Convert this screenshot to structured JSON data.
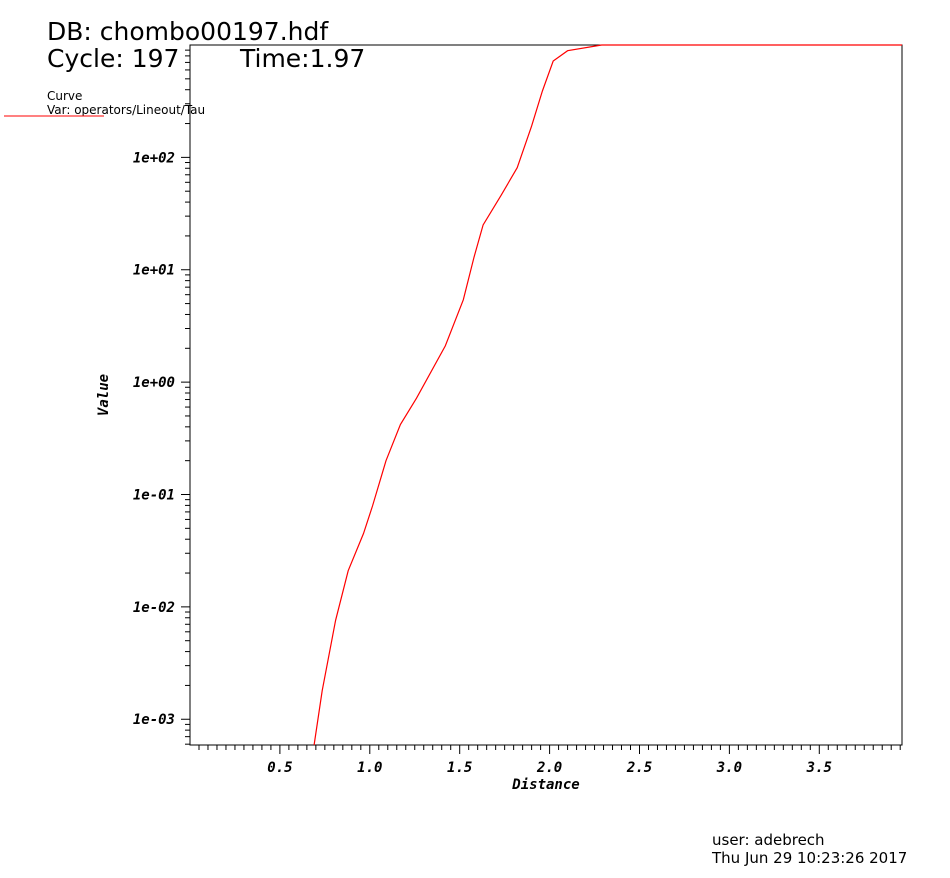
{
  "header": {
    "db": "DB: chombo00197.hdf",
    "cycle": "Cycle: 197",
    "time": "Time:1.97"
  },
  "legend": {
    "title": "Curve",
    "var": "Var: operators/Lineout/Tau",
    "color": "#ff0000"
  },
  "footer": {
    "user": "user: adebrech",
    "date": "Thu Jun 29 10:23:26 2017"
  },
  "chart_data": {
    "type": "line",
    "xlabel": "Distance",
    "ylabel": "Value",
    "xlim": [
      0,
      3.96
    ],
    "ylim": [
      0.00059,
      1000
    ],
    "yscale": "log",
    "grid": false,
    "xticks": [
      "0.5",
      "1.0",
      "1.5",
      "2.0",
      "2.5",
      "3.0",
      "3.5"
    ],
    "yticks": [
      "1e-03",
      "1e-02",
      "1e-01",
      "1e+00",
      "1e+01",
      "1e+02"
    ],
    "series": [
      {
        "color": "#ff0000",
        "x": [
          0.69,
          0.735,
          0.81,
          0.88,
          0.965,
          1.015,
          1.09,
          1.17,
          1.26,
          1.42,
          1.52,
          1.58,
          1.63,
          1.73,
          1.82,
          1.9,
          1.96,
          2.02,
          2.1,
          2.29,
          3.96
        ],
        "y": [
          0.00059,
          0.0018,
          0.0076,
          0.021,
          0.045,
          0.079,
          0.2,
          0.42,
          0.72,
          2.1,
          5.4,
          13,
          25,
          46,
          81,
          190,
          390,
          720,
          890,
          1000,
          1000
        ]
      }
    ]
  }
}
